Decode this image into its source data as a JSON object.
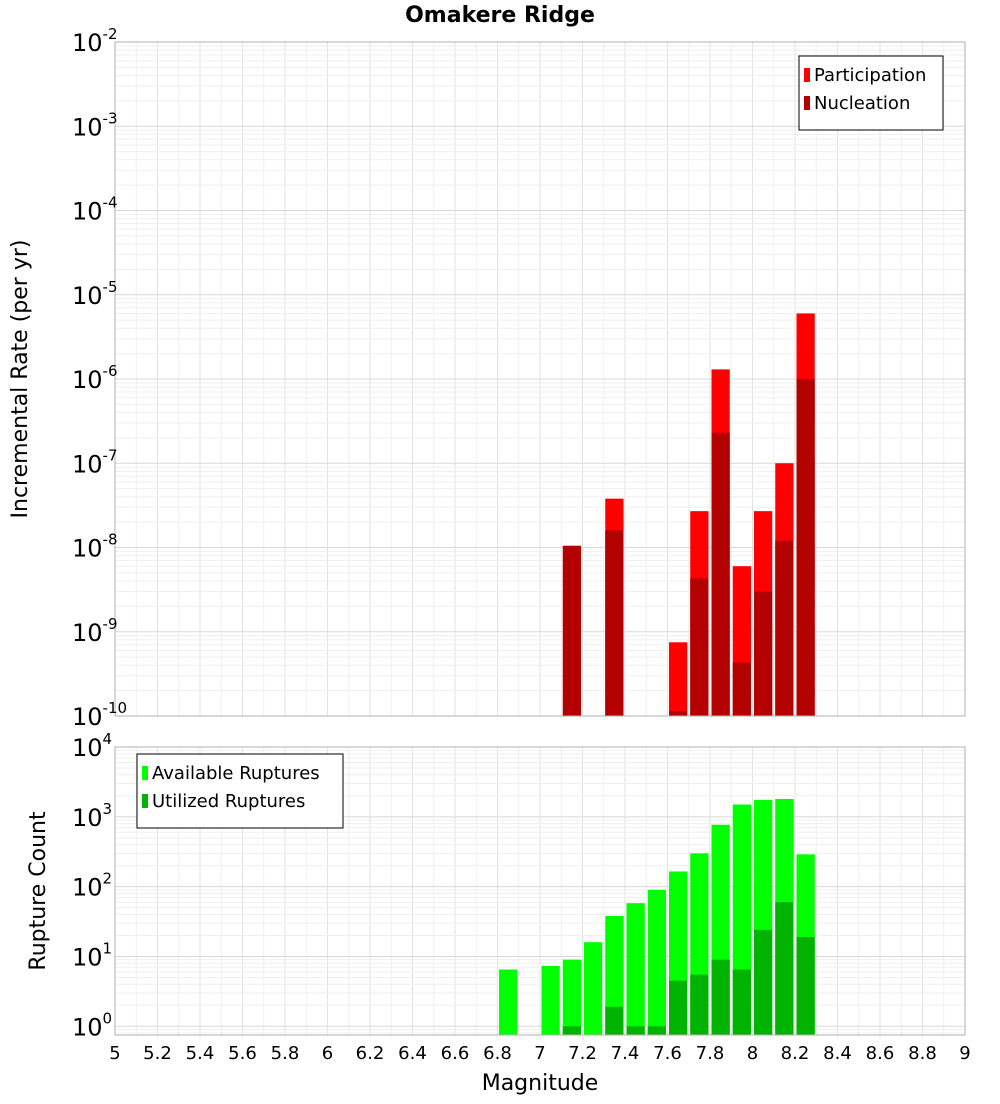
{
  "chart_data": [
    {
      "type": "bar",
      "title": "Omakere Ridge",
      "xlabel": "Magnitude",
      "ylabel": "Incremental Rate (per yr)",
      "yscale": "log",
      "xlim": [
        5,
        9
      ],
      "ylim": [
        1e-10,
        0.01
      ],
      "y_tick_labels": [
        {
          "base": "10",
          "exp": "-10"
        },
        {
          "base": "10",
          "exp": "-9"
        },
        {
          "base": "10",
          "exp": "-8"
        },
        {
          "base": "10",
          "exp": "-7"
        },
        {
          "base": "10",
          "exp": "-6"
        },
        {
          "base": "10",
          "exp": "-5"
        },
        {
          "base": "10",
          "exp": "-4"
        },
        {
          "base": "10",
          "exp": "-3"
        },
        {
          "base": "10",
          "exp": "-2"
        }
      ],
      "grid": true,
      "legend_position": "top-right",
      "bar_width": 0.1,
      "series": [
        {
          "name": "Participation",
          "color": "#ff0000",
          "x": [
            7.65,
            7.75,
            7.85,
            7.95,
            8.05,
            8.15,
            8.25,
            7.35
          ],
          "values": [
            7.5e-10,
            2.7e-08,
            1.3e-06,
            6e-09,
            2.7e-08,
            1e-07,
            6e-06,
            3.8e-08
          ]
        },
        {
          "name": "Nucleation",
          "color": "#b30000",
          "x": [
            7.15,
            7.35,
            7.65,
            7.75,
            7.85,
            7.95,
            8.05,
            8.15,
            8.25
          ],
          "values": [
            1.05e-08,
            1.6e-08,
            1.15e-10,
            4.3e-09,
            2.3e-07,
            4.3e-10,
            3e-09,
            1.2e-08,
            1e-06
          ]
        }
      ]
    },
    {
      "type": "bar",
      "xlabel": "Magnitude",
      "ylabel": "Rupture Count",
      "yscale": "log",
      "xlim": [
        5,
        9
      ],
      "ylim": [
        0.75,
        10000
      ],
      "y_tick_labels": [
        {
          "base": "10",
          "exp": "0"
        },
        {
          "base": "10",
          "exp": "1"
        },
        {
          "base": "10",
          "exp": "2"
        },
        {
          "base": "10",
          "exp": "3"
        },
        {
          "base": "10",
          "exp": "4"
        }
      ],
      "x_tick_labels": [
        "5",
        "5.2",
        "5.4",
        "5.6",
        "5.8",
        "6",
        "6.2",
        "6.4",
        "6.6",
        "6.8",
        "7",
        "7.2",
        "7.4",
        "7.6",
        "7.8",
        "8",
        "8.2",
        "8.4",
        "8.6",
        "8.8",
        "9"
      ],
      "grid": true,
      "legend_position": "top-left",
      "bar_width": 0.1,
      "series": [
        {
          "name": "Available Ruptures",
          "color": "#00ff00",
          "x": [
            6.85,
            7.05,
            7.15,
            7.25,
            7.35,
            7.45,
            7.55,
            7.65,
            7.75,
            7.85,
            7.95,
            8.05,
            8.15,
            8.25
          ],
          "values": [
            6.5,
            7.3,
            9,
            16,
            38,
            58,
            90,
            165,
            300,
            770,
            1500,
            1750,
            1800,
            290
          ]
        },
        {
          "name": "Utilized Ruptures",
          "color": "#00b300",
          "x": [
            7.15,
            7.35,
            7.45,
            7.55,
            7.65,
            7.75,
            7.85,
            7.95,
            8.05,
            8.15,
            8.25
          ],
          "values": [
            1,
            1.9,
            1,
            1,
            4.5,
            5.5,
            9,
            6.5,
            24,
            60,
            19
          ]
        }
      ]
    }
  ]
}
